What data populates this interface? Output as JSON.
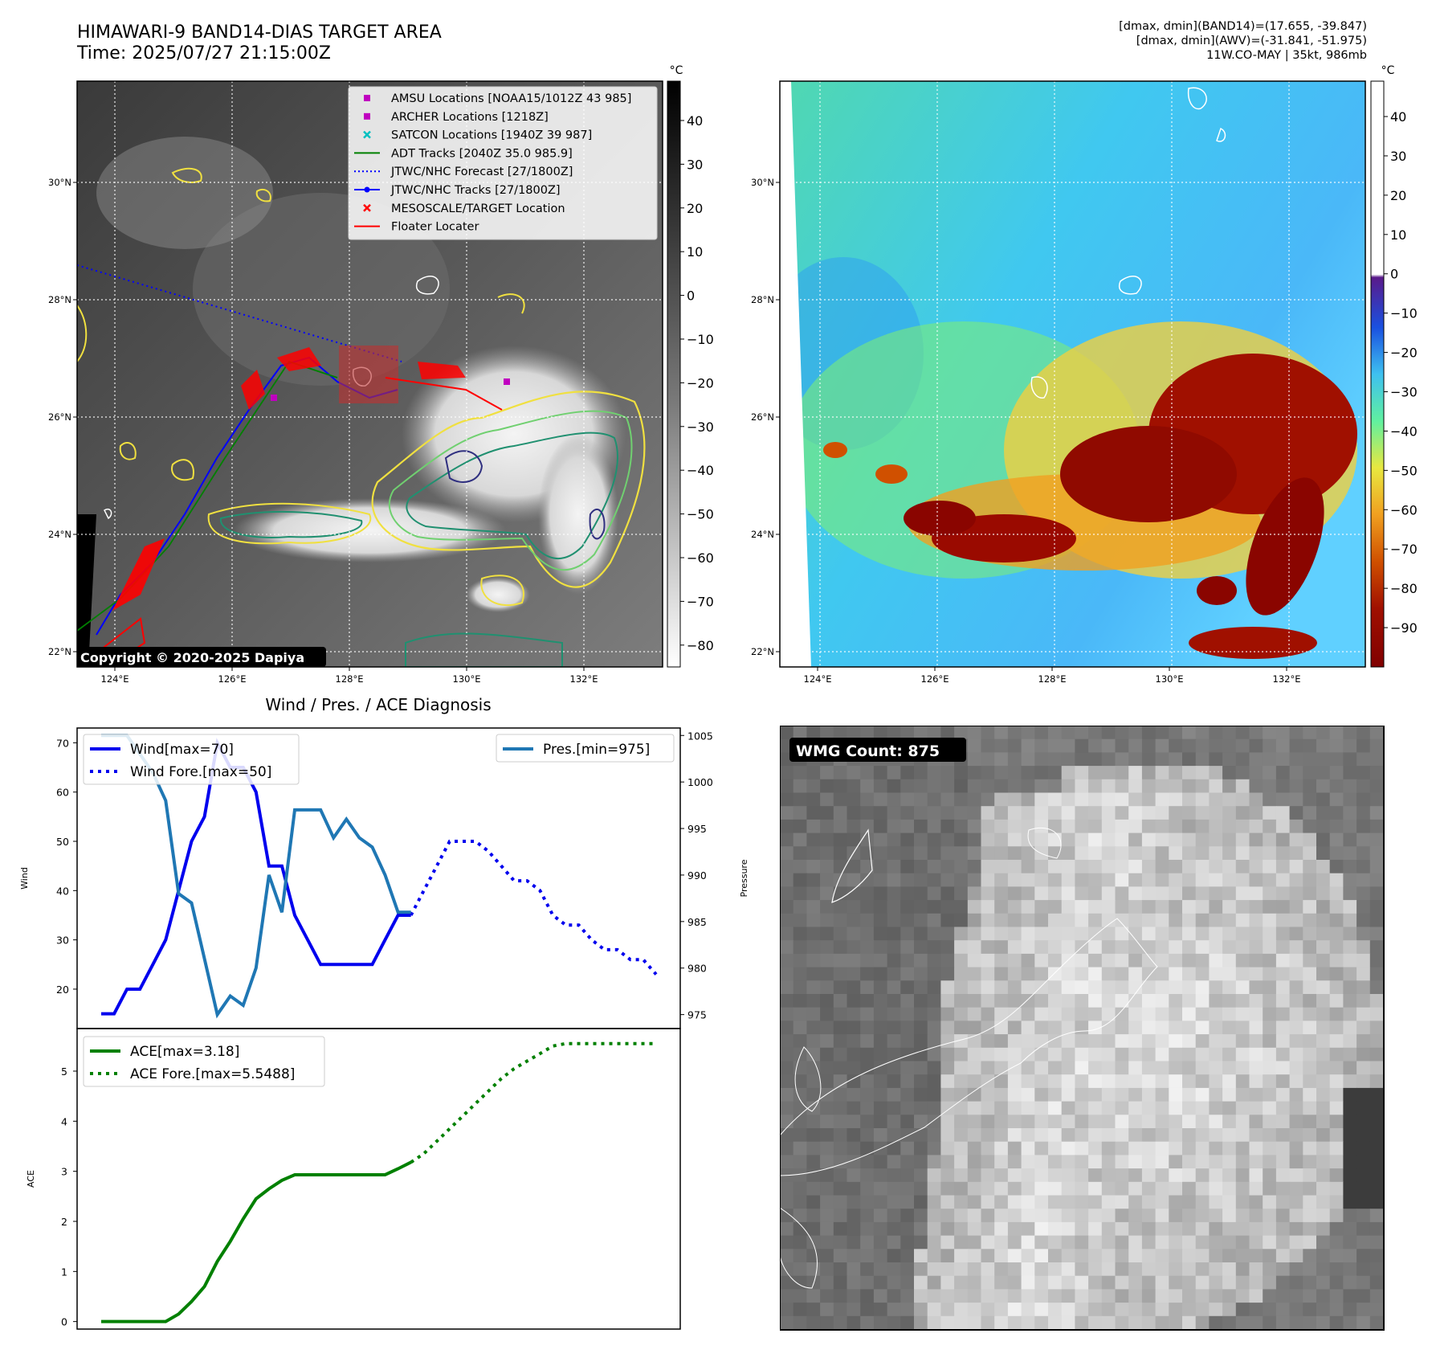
{
  "header": {
    "title_line1": "HIMAWARI-9 BAND14-DIAS TARGET AREA",
    "title_line2": "Time: 2025/07/27 21:15:00Z",
    "info_line1": "[dmax, dmin](BAND14)=(17.655, -39.847)",
    "info_line2": "[dmax, dmin](AWV)=(-31.841, -51.975)",
    "info_line3": "11W.CO-MAY | 35kt, 986mb"
  },
  "map": {
    "lat_labels": [
      "30°N",
      "28°N",
      "26°N",
      "24°N",
      "22°N"
    ],
    "lon_labels": [
      "124°E",
      "126°E",
      "128°E",
      "130°E",
      "132°E"
    ],
    "copyright": "Copyright © 2020-2025 Dapiya",
    "legend": [
      {
        "label": "AMSU Locations [NOAA15/1012Z 43 985]",
        "color": "#c000c0",
        "marker": "square"
      },
      {
        "label": "ARCHER Locations [1218Z]",
        "color": "#c000c0",
        "marker": "square"
      },
      {
        "label": "SATCON Locations [1940Z 39 987]",
        "color": "#00c0c0",
        "marker": "x"
      },
      {
        "label": "ADT Tracks [2040Z 35.0 985.9]",
        "color": "#008000",
        "marker": "line"
      },
      {
        "label": "JTWC/NHC Forecast [27/1800Z]",
        "color": "#0000ff",
        "marker": "dotted"
      },
      {
        "label": "JTWC/NHC Tracks [27/1800Z]",
        "color": "#0000ff",
        "marker": "dotline"
      },
      {
        "label": "MESOSCALE/TARGET Location",
        "color": "#ff0000",
        "marker": "redx"
      },
      {
        "label": "Floater Locater",
        "color": "#ff0000",
        "marker": "line"
      }
    ],
    "colorbar_unit": "°C",
    "colorbar1_ticks": [
      "40",
      "30",
      "20",
      "10",
      "0",
      "−10",
      "−20",
      "−30",
      "−40",
      "−50",
      "−60",
      "−70",
      "−80"
    ],
    "colorbar2_ticks": [
      "40",
      "30",
      "20",
      "10",
      "0",
      "−10",
      "−20",
      "−30",
      "−40",
      "−50",
      "−60",
      "−70",
      "−80",
      "−90"
    ]
  },
  "diagnosis": {
    "title": "Wind / Pres. / ACE Diagnosis",
    "wind_ylabel": "Wind",
    "pres_ylabel": "Pressure",
    "ace_ylabel": "ACE",
    "wmg_label": "WMG Count: 875"
  },
  "chart_data": [
    {
      "type": "line",
      "title": "Wind / Pres. / ACE Diagnosis",
      "ylabel": "Wind",
      "y2label": "Pressure",
      "ylim": [
        12,
        73
      ],
      "y2lim": [
        973.5,
        1005.8
      ],
      "yticks": [
        20,
        30,
        40,
        50,
        60,
        70
      ],
      "y2ticks": [
        975,
        980,
        985,
        990,
        995,
        1000,
        1005
      ],
      "series": [
        {
          "name": "Wind[max=70]",
          "color": "#0000ee",
          "style": "solid",
          "axis": "left",
          "points": [
            [
              0,
              15
            ],
            [
              1,
              15
            ],
            [
              2,
              20
            ],
            [
              3,
              20
            ],
            [
              4,
              25
            ],
            [
              5,
              30
            ],
            [
              6,
              40
            ],
            [
              7,
              50
            ],
            [
              8,
              55
            ],
            [
              9,
              70
            ],
            [
              10,
              65
            ],
            [
              11,
              65
            ],
            [
              12,
              60
            ],
            [
              13,
              45
            ],
            [
              14,
              45
            ],
            [
              15,
              35
            ],
            [
              16,
              30
            ],
            [
              17,
              25
            ],
            [
              18,
              25
            ],
            [
              19,
              25
            ],
            [
              20,
              25
            ],
            [
              21,
              25
            ],
            [
              22,
              30
            ],
            [
              23,
              35
            ],
            [
              24,
              35
            ]
          ]
        },
        {
          "name": "Wind Fore.[max=50]",
          "color": "#0000ee",
          "style": "dotted",
          "axis": "left",
          "points": [
            [
              24,
              35
            ],
            [
              25,
              40
            ],
            [
              26,
              45
            ],
            [
              27,
              50
            ],
            [
              28,
              50
            ],
            [
              29,
              50
            ],
            [
              30,
              48
            ],
            [
              31,
              45
            ],
            [
              32,
              42
            ],
            [
              33,
              42
            ],
            [
              34,
              40
            ],
            [
              35,
              35
            ],
            [
              36,
              33
            ],
            [
              37,
              33
            ],
            [
              38,
              30
            ],
            [
              39,
              28
            ],
            [
              40,
              28
            ],
            [
              41,
              26
            ],
            [
              42,
              26
            ],
            [
              43,
              23
            ]
          ]
        },
        {
          "name": "Pres.[min=975]",
          "color": "#1f77b4",
          "style": "solid",
          "axis": "right",
          "points": [
            [
              0,
              1005
            ],
            [
              1,
              1005
            ],
            [
              2,
              1005
            ],
            [
              3,
              1003
            ],
            [
              4,
              1001
            ],
            [
              5,
              998
            ],
            [
              6,
              988
            ],
            [
              7,
              987
            ],
            [
              8,
              981
            ],
            [
              9,
              975
            ],
            [
              10,
              977
            ],
            [
              11,
              976
            ],
            [
              12,
              980
            ],
            [
              13,
              990
            ],
            [
              14,
              986
            ],
            [
              15,
              997
            ],
            [
              16,
              997
            ],
            [
              17,
              997
            ],
            [
              18,
              994
            ],
            [
              19,
              996
            ],
            [
              20,
              994
            ],
            [
              21,
              993
            ],
            [
              22,
              990
            ],
            [
              23,
              986
            ],
            [
              24,
              986
            ]
          ]
        }
      ]
    },
    {
      "type": "line",
      "ylabel": "ACE",
      "ylim": [
        -0.15,
        5.85
      ],
      "yticks": [
        0,
        1,
        2,
        3,
        4,
        5
      ],
      "series": [
        {
          "name": "ACE[max=3.18]",
          "color": "#008000",
          "style": "solid",
          "points": [
            [
              0,
              0
            ],
            [
              1,
              0
            ],
            [
              2,
              0
            ],
            [
              3,
              0
            ],
            [
              4,
              0
            ],
            [
              5,
              0
            ],
            [
              6,
              0.15
            ],
            [
              7,
              0.4
            ],
            [
              8,
              0.7
            ],
            [
              9,
              1.2
            ],
            [
              10,
              1.6
            ],
            [
              11,
              2.05
            ],
            [
              12,
              2.45
            ],
            [
              13,
              2.65
            ],
            [
              14,
              2.82
            ],
            [
              15,
              2.93
            ],
            [
              16,
              2.93
            ],
            [
              17,
              2.93
            ],
            [
              18,
              2.93
            ],
            [
              19,
              2.93
            ],
            [
              20,
              2.93
            ],
            [
              21,
              2.93
            ],
            [
              22,
              2.93
            ],
            [
              23,
              3.05
            ],
            [
              24,
              3.18
            ]
          ]
        },
        {
          "name": "ACE Fore.[max=5.5488]",
          "color": "#008000",
          "style": "dotted",
          "points": [
            [
              24,
              3.18
            ],
            [
              25,
              3.35
            ],
            [
              26,
              3.6
            ],
            [
              27,
              3.85
            ],
            [
              28,
              4.1
            ],
            [
              29,
              4.35
            ],
            [
              30,
              4.6
            ],
            [
              31,
              4.85
            ],
            [
              32,
              5.05
            ],
            [
              33,
              5.2
            ],
            [
              34,
              5.35
            ],
            [
              35,
              5.5
            ],
            [
              36,
              5.55
            ],
            [
              37,
              5.55
            ],
            [
              38,
              5.55
            ],
            [
              39,
              5.55
            ],
            [
              40,
              5.55
            ],
            [
              41,
              5.55
            ],
            [
              42,
              5.55
            ],
            [
              43,
              5.55
            ]
          ]
        }
      ]
    }
  ]
}
